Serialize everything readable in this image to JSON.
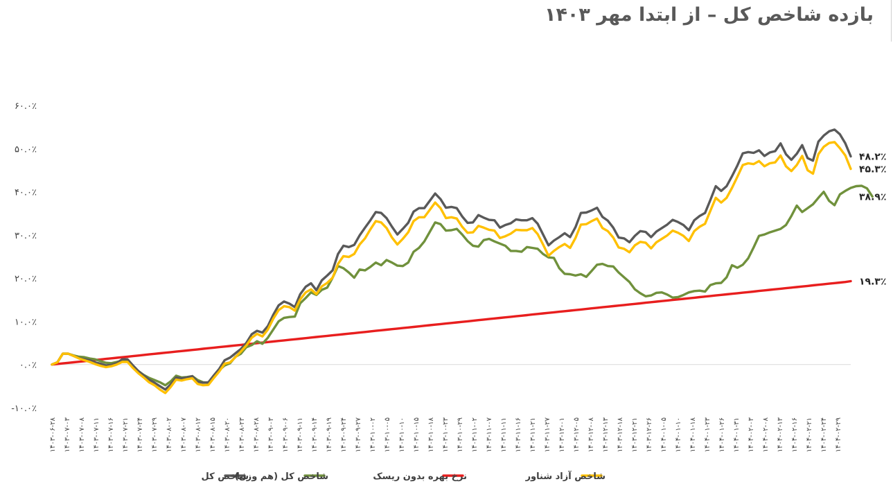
{
  "chart_data": {
    "type": "line",
    "title": "بازده شاخص کل – از ابتدا مهر ۱۴۰۳",
    "xlabel": "",
    "ylabel": "",
    "ylim": [
      -10,
      60
    ],
    "y_ticks": [
      "-۱۰.۰٪",
      "۰.۰٪",
      "۱۰.۰٪",
      "۲۰.۰٪",
      "۳۰.۰٪",
      "۴۰.۰٪",
      "۵۰.۰٪",
      "۶۰.۰٪"
    ],
    "x_tick_labels": [
      "۱۴۰۳-۰۶-۲۸",
      "۱۴۰۳-۰۷-۰۳",
      "۱۴۰۳-۰۷-۰۸",
      "۱۴۰۳-۰۷-۱۱",
      "۱۴۰۳-۰۷-۱۶",
      "۱۴۰۳-۰۷-۲۱",
      "۱۴۰۳-۰۷-۲۴",
      "۱۴۰۳-۰۷-۲۹",
      "۱۴۰۳-۰۸-۰۲",
      "۱۴۰۳-۰۸-۰۷",
      "۱۴۰۳-۰۸-۱۲",
      "۱۴۰۳-۰۸-۱۵",
      "۱۴۰۳-۰۸-۲۰",
      "۱۴۰۳-۰۸-۲۳",
      "۱۴۰۳-۰۸-۲۸",
      "۱۴۰۳-۰۹-۰۳",
      "۱۴۰۳-۰۹-۰۶",
      "۱۴۰۳-۰۹-۱۱",
      "۱۴۰۳-۰۹-۱۴",
      "۱۴۰۳-۰۹-۱۹",
      "۱۴۰۳-۰۹-۲۴",
      "۱۴۰۳-۰۹-۲۷",
      "۱۴۰۳-۱۰-۰۲",
      "۱۴۰۳-۱۰-۰۵",
      "۱۴۰۳-۱۰-۱۰",
      "۱۴۰۳-۱۰-۱۵",
      "۱۴۰۳-۱۰-۱۸",
      "۱۴۰۳-۱۰-۲۳",
      "۱۴۰۳-۱۰-۲۹",
      "۱۴۰۳-۱۱-۰۲",
      "۱۴۰۳-۱۱-۰۷",
      "۱۴۰۳-۱۱-۱۱",
      "۱۴۰۳-۱۱-۱۶",
      "۱۴۰۳-۱۱-۲۱",
      "۱۴۰۳-۱۱-۲۷",
      "۱۴۰۳-۱۲-۰۱",
      "۱۴۰۳-۱۲-۰۵",
      "۱۴۰۳-۱۲-۰۸",
      "۱۴۰۳-۱۲-۱۳",
      "۱۴۰۳-۱۲-۱۸",
      "۱۴۰۳-۱۲-۲۱",
      "۱۴۰۳-۱۲-۲۶",
      "۱۴۰۴-۰۱-۰۵",
      "۱۴۰۴-۰۱-۱۰",
      "۱۴۰۴-۰۱-۱۸",
      "۱۴۰۴-۰۱-۲۳",
      "۱۴۰۴-۰۱-۲۶",
      "۱۴۰۴-۰۱-۳۱",
      "۱۴۰۴-۰۲-۰۳",
      "۱۴۰۴-۰۲-۰۸",
      "۱۴۰۴-۰۲-۱۳",
      "۱۴۰۴-۰۲-۱۶",
      "۱۴۰۴-۰۲-۲۱",
      "۱۴۰۴-۰۲-۲۴",
      "۱۴۰۴-۰۲-۲۹"
    ],
    "legend_position": "bottom",
    "grid": false,
    "series": [
      {
        "name": "شاخص کل",
        "color": "#595959",
        "end_label": "۴۸.۲٪",
        "values": [
          0,
          0.5,
          2.5,
          2.5,
          2,
          1.5,
          1.2,
          1,
          0.5,
          0.2,
          -0.2,
          -0.1,
          0.3,
          1.2,
          1.2,
          -0.2,
          -1.5,
          -2.5,
          -3.5,
          -4.2,
          -5,
          -5.8,
          -4.6,
          -3,
          -3.2,
          -3,
          -2.7,
          -4,
          -4.2,
          -4.1,
          -2.5,
          -1,
          1,
          1.6,
          2.6,
          3.6,
          5,
          7,
          7.8,
          7.4,
          8.9,
          11.5,
          13.7,
          14.6,
          14.1,
          13.3,
          16.3,
          18,
          18.8,
          17.2,
          19.5,
          20.6,
          21.8,
          25.6,
          27.5,
          27.2,
          27.7,
          29.9,
          31.7,
          33.4,
          35.3,
          35.1,
          33.9,
          31.9,
          30.1,
          31.4,
          32.8,
          35.4,
          36.2,
          36.2,
          37.9,
          39.6,
          38.3,
          36.3,
          36.5,
          36.2,
          34.3,
          32.8,
          32.9,
          34.6,
          34,
          33.5,
          33.4,
          31.7,
          32.3,
          32.7,
          33.6,
          33.4,
          33.4,
          33.9,
          32.6,
          30.1,
          27.6,
          28.7,
          29.5,
          30.4,
          29.5,
          31.8,
          35.1,
          35.2,
          35.7,
          36.3,
          34.2,
          33.3,
          31.7,
          29.4,
          29.2,
          28.3,
          29.8,
          30.9,
          30.7,
          29.5,
          30.8,
          31.6,
          32.4,
          33.5,
          33,
          32.3,
          31.1,
          33.4,
          34.4,
          35.1,
          38.1,
          41.3,
          40.2,
          41.3,
          43.6,
          46.1,
          48.9,
          49.2,
          49,
          49.6,
          48.3,
          49.1,
          49.4,
          51.2,
          48.7,
          47.4,
          48.8,
          50.8,
          47.8,
          47.2,
          51.6,
          53,
          54,
          54.4,
          53.3,
          51.2,
          48.2
        ]
      },
      {
        "name": "شاخص کل (هم وزن)",
        "color": "#70913C",
        "end_label": "۳۸.۹٪",
        "values": [
          0,
          0.5,
          2.5,
          2.5,
          2.1,
          1.8,
          1.7,
          1.4,
          1.2,
          0.8,
          0.4,
          0.3,
          0.6,
          0.9,
          0.9,
          -0.5,
          -1.5,
          -2.4,
          -3.1,
          -3.6,
          -4.1,
          -4.8,
          -3.9,
          -2.6,
          -3,
          -2.9,
          -2.7,
          -3.6,
          -4.1,
          -4.2,
          -2.6,
          -1.3,
          -0.2,
          0.3,
          1.8,
          2.5,
          4,
          4.5,
          5.4,
          4.8,
          6.2,
          8.1,
          10,
          10.8,
          11,
          11.1,
          14.2,
          15.4,
          16.7,
          16.1,
          17.3,
          17.8,
          20.1,
          22.8,
          22.3,
          21.3,
          20.1,
          22,
          21.8,
          22.6,
          23.6,
          23,
          24.2,
          23.6,
          22.9,
          22.8,
          23.6,
          26.1,
          27,
          28.5,
          30.7,
          32.9,
          32.5,
          31,
          31.1,
          31.4,
          30.1,
          28.6,
          27.5,
          27.3,
          28.8,
          29.1,
          28.5,
          28,
          27.5,
          26.3,
          26.3,
          26.1,
          27.2,
          27,
          26.8,
          25.6,
          24.8,
          24.7,
          22.3,
          21,
          20.9,
          20.6,
          20.9,
          20.3,
          21.7,
          23.1,
          23.3,
          22.8,
          22.7,
          21.3,
          20.2,
          19.1,
          17.4,
          16.5,
          15.8,
          16,
          16.6,
          16.7,
          16.2,
          15.5,
          15.6,
          16.1,
          16.7,
          17,
          17.1,
          16.9,
          18.4,
          18.8,
          18.9,
          20.2,
          23,
          22.4,
          23.1,
          24.6,
          27.1,
          29.8,
          30.1,
          30.6,
          31,
          31.4,
          32.3,
          34.4,
          36.8,
          35.3,
          36.2,
          37.1,
          38.6,
          40,
          37.9,
          36.9,
          39.4,
          40.2,
          40.9,
          41.3,
          41.4,
          40.8,
          38.9
        ]
      },
      {
        "name": "نرخ بهره بدون ریسک",
        "color": "#E81E1E",
        "end_label": "۱۹.۳٪",
        "values": [
          0,
          0.13,
          0.26,
          0.39,
          0.52,
          0.65,
          0.78,
          0.91,
          1.04,
          1.17,
          1.3,
          1.43,
          1.56,
          1.69,
          1.82,
          1.95,
          2.08,
          2.21,
          2.34,
          2.47,
          2.6,
          2.73,
          2.86,
          2.99,
          3.12,
          3.25,
          3.38,
          3.51,
          3.64,
          3.77,
          3.9,
          4.03,
          4.16,
          4.29,
          4.42,
          4.55,
          4.68,
          4.81,
          4.94,
          5.07,
          5.2,
          5.33,
          5.46,
          5.59,
          5.72,
          5.85,
          5.98,
          6.11,
          6.24,
          6.37,
          6.5,
          6.63,
          6.76,
          6.89,
          7.02,
          7.15,
          7.28,
          7.41,
          7.54,
          7.67,
          7.8,
          7.93,
          8.06,
          8.19,
          8.32,
          8.45,
          8.58,
          8.71,
          8.84,
          8.97,
          9.1,
          9.23,
          9.36,
          9.49,
          9.62,
          9.75,
          9.88,
          10.01,
          10.14,
          10.27,
          10.4,
          10.53,
          10.66,
          10.79,
          10.92,
          11.05,
          11.18,
          11.31,
          11.44,
          11.57,
          11.7,
          11.83,
          11.96,
          12.09,
          12.22,
          12.35,
          12.48,
          12.61,
          12.74,
          12.87,
          13,
          13.13,
          13.26,
          13.39,
          13.52,
          13.65,
          13.78,
          13.91,
          14.04,
          14.17,
          14.3,
          14.43,
          14.56,
          14.69,
          14.82,
          14.95,
          15.08,
          15.21,
          15.34,
          15.47,
          15.6,
          15.73,
          15.86,
          15.99,
          16.12,
          16.25,
          16.38,
          16.51,
          16.64,
          16.77,
          16.9,
          17.03,
          17.16,
          17.29,
          17.42,
          17.55,
          17.68,
          17.81,
          17.94,
          18.07,
          18.2,
          18.33,
          18.46,
          18.59,
          18.72,
          18.85,
          18.98,
          19.11,
          19.3
        ]
      },
      {
        "name": "شاخص آزاد شناور",
        "color": "#FFC000",
        "end_label": "۴۵.۳٪",
        "values": [
          0,
          0.5,
          2.5,
          2.5,
          2,
          1.4,
          1,
          0.6,
          0.1,
          -0.3,
          -0.6,
          -0.4,
          0,
          0.6,
          0.6,
          -0.8,
          -2,
          -3,
          -4.1,
          -4.8,
          -5.8,
          -6.6,
          -5.2,
          -3.5,
          -3.7,
          -3.4,
          -3.2,
          -4.5,
          -4.8,
          -4.7,
          -3.1,
          -1.6,
          0.2,
          0.5,
          1.7,
          3,
          4.4,
          6.2,
          7.1,
          6.5,
          8.1,
          10.6,
          12.6,
          13.5,
          13.3,
          12.5,
          15.1,
          16.7,
          17.4,
          16.3,
          18.1,
          18.9,
          20.1,
          23.3,
          25.1,
          24.9,
          25.6,
          27.8,
          29.2,
          31.3,
          33.2,
          32.9,
          31.6,
          29.4,
          27.8,
          29.1,
          30.6,
          33.2,
          34.1,
          34.1,
          35.8,
          37.5,
          36.2,
          33.9,
          34.1,
          33.8,
          31.9,
          30.5,
          30.6,
          32.1,
          31.7,
          31.2,
          31,
          29.3,
          29.7,
          30.3,
          31.2,
          31.1,
          31.1,
          31.6,
          30.2,
          27.8,
          25.2,
          26.3,
          27.2,
          27.9,
          27,
          29.3,
          32.4,
          32.5,
          33.2,
          33.8,
          31.6,
          30.9,
          29.4,
          27.1,
          26.8,
          26,
          27.6,
          28.4,
          28.2,
          26.9,
          28.3,
          29.1,
          29.9,
          31,
          30.5,
          29.8,
          28.6,
          30.9,
          31.9,
          32.6,
          35.6,
          38.6,
          37.5,
          38.6,
          40.9,
          43.5,
          46.2,
          46.6,
          46.4,
          47.1,
          45.9,
          46.6,
          46.8,
          48.4,
          45.9,
          44.8,
          46.2,
          48.3,
          45,
          44.2,
          48.7,
          50.4,
          51.3,
          51.5,
          50.1,
          48.4,
          45.3
        ]
      }
    ]
  }
}
